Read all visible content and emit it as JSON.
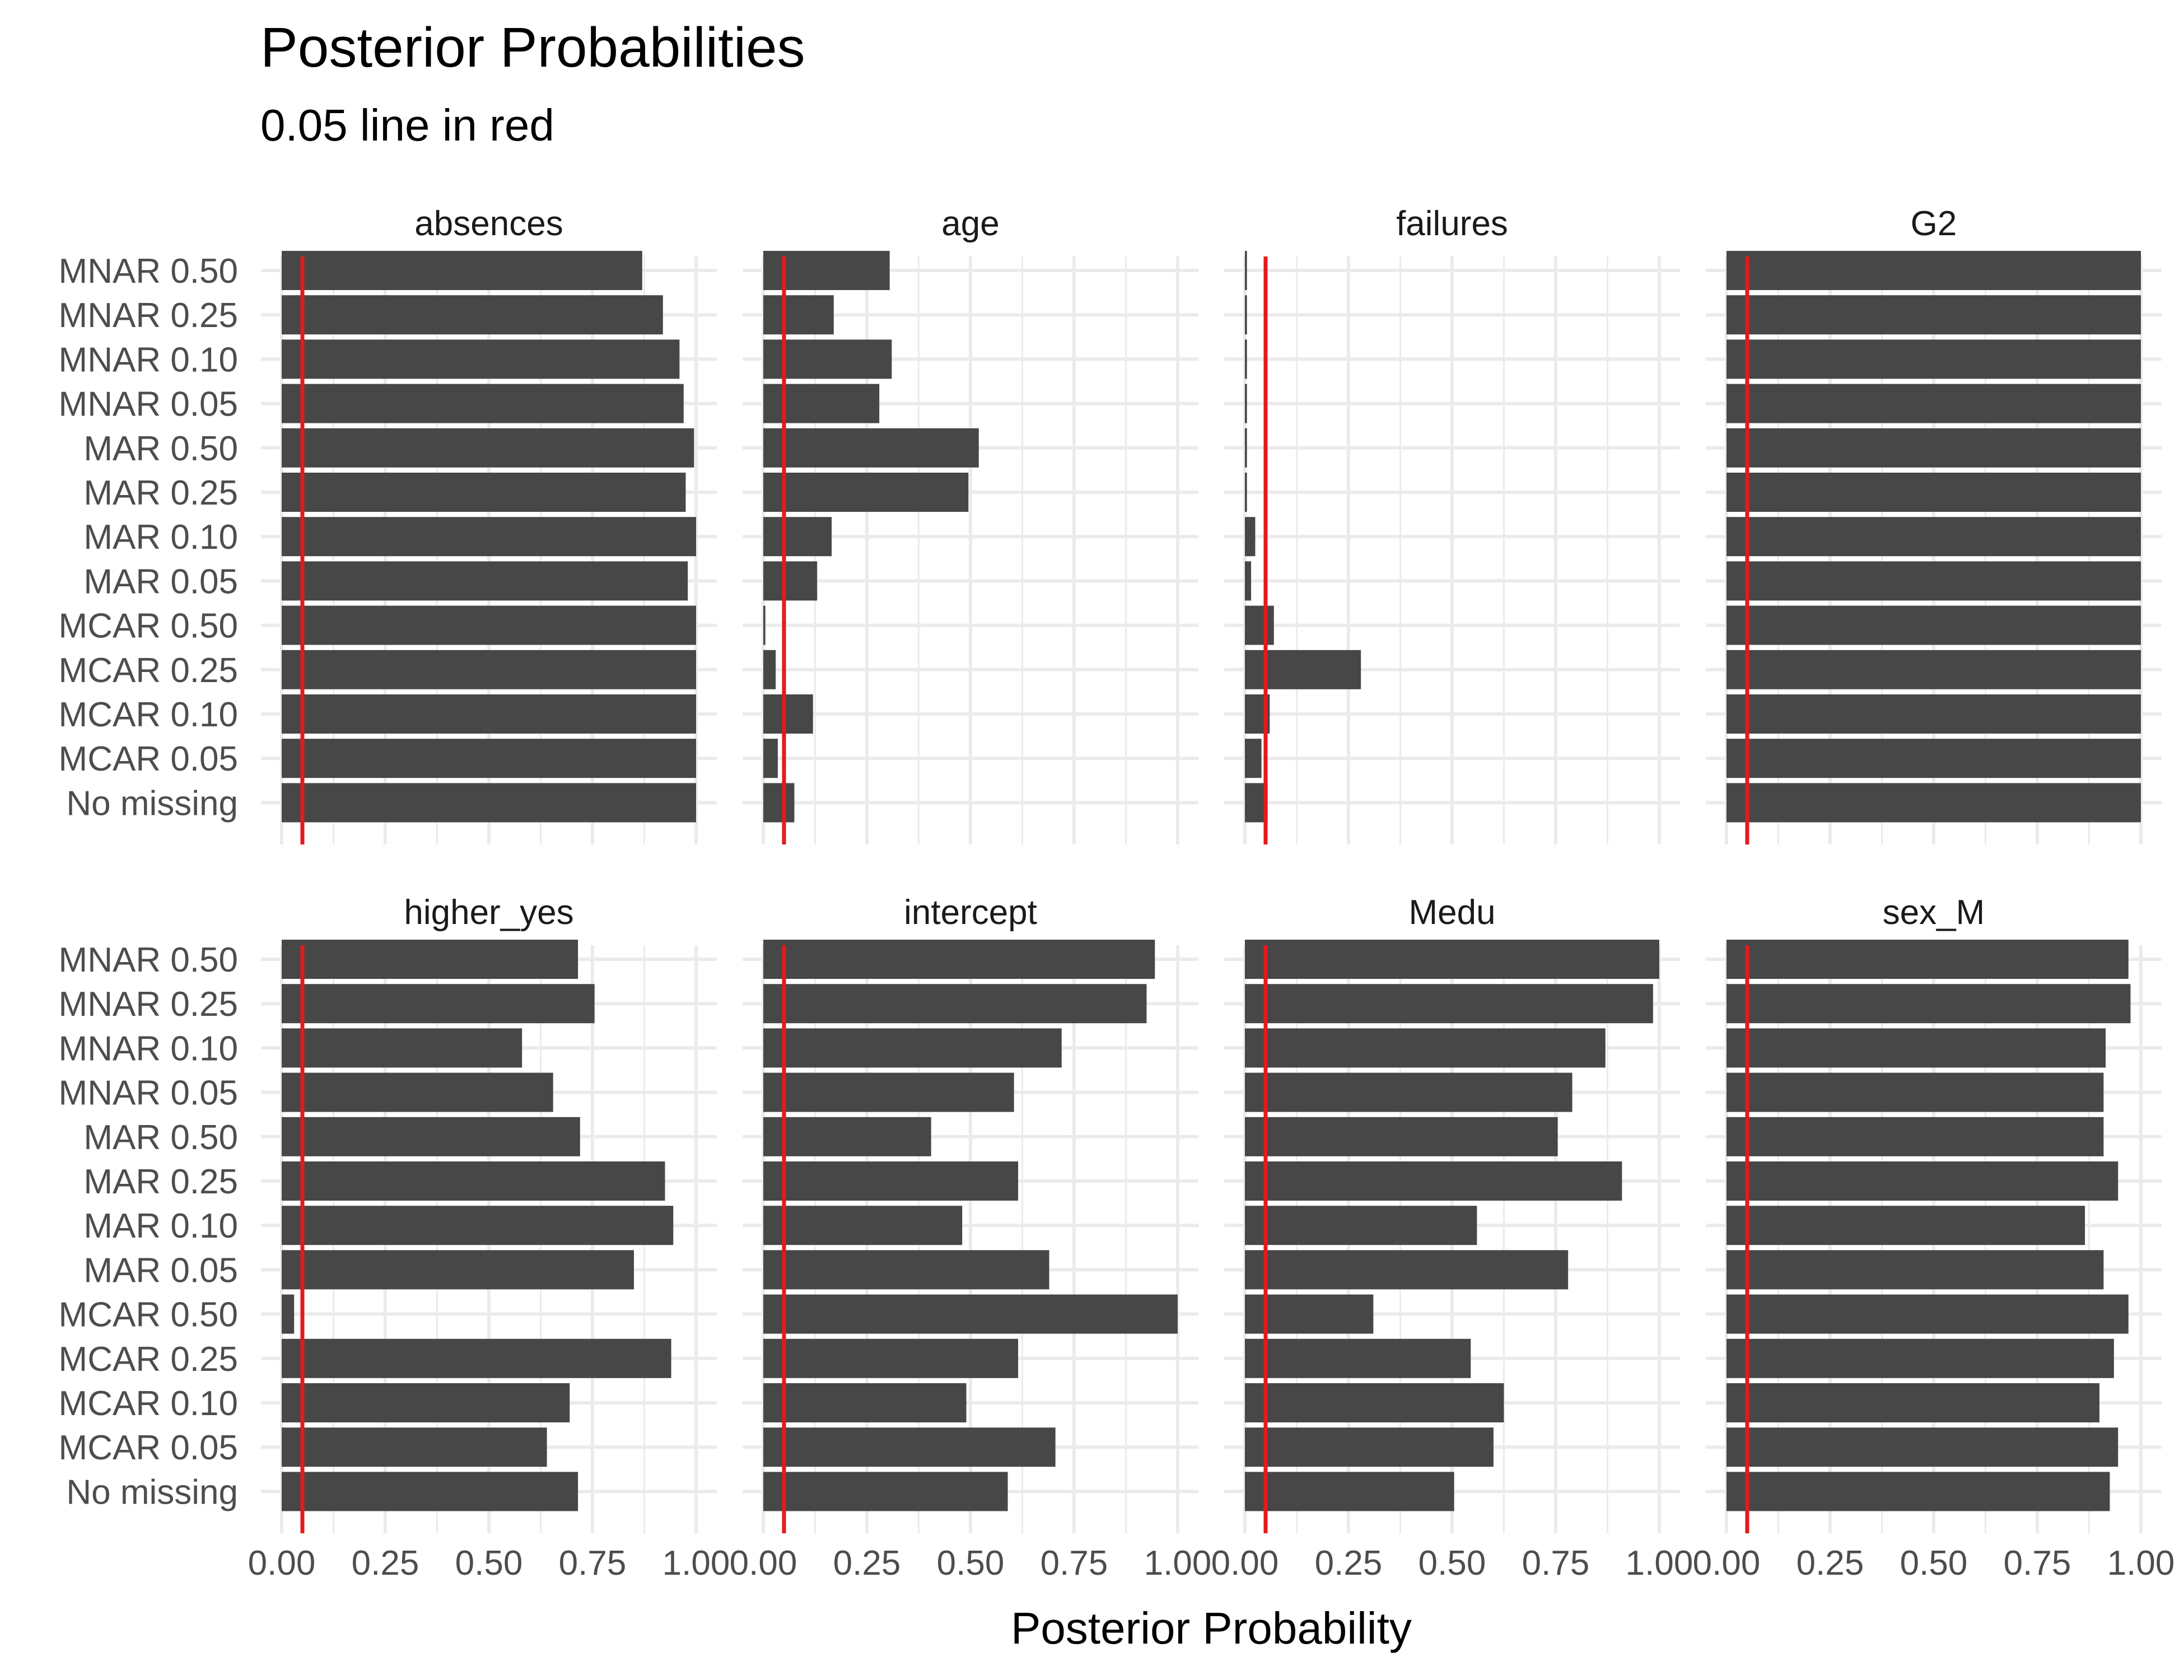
{
  "chart_data": {
    "type": "bar",
    "orientation": "horizontal",
    "title": "Posterior Probabilities",
    "subtitle": "0.05 line in red",
    "xlabel": "Posterior Probability",
    "ylabel": "",
    "xlim": [
      0,
      1
    ],
    "x_ticks": [
      "0.00",
      "0.25",
      "0.50",
      "0.75",
      "1.00"
    ],
    "reference_line": {
      "value": 0.05,
      "color": "#E41A1C"
    },
    "bar_color": "#474747",
    "grid": true,
    "categories": [
      "MNAR 0.50",
      "MNAR 0.25",
      "MNAR 0.10",
      "MNAR 0.05",
      "MAR 0.50",
      "MAR 0.25",
      "MAR 0.10",
      "MAR 0.05",
      "MCAR 0.50",
      "MCAR 0.25",
      "MCAR 0.10",
      "MCAR 0.05",
      "No missing"
    ],
    "panels": [
      {
        "name": "absences",
        "values": [
          0.87,
          0.92,
          0.96,
          0.97,
          0.995,
          0.975,
          1.0,
          0.98,
          1.0,
          1.0,
          1.0,
          1.0,
          1.0
        ]
      },
      {
        "name": "age",
        "values": [
          0.305,
          0.17,
          0.31,
          0.28,
          0.52,
          0.495,
          0.165,
          0.13,
          0.005,
          0.03,
          0.12,
          0.035,
          0.075
        ]
      },
      {
        "name": "failures",
        "values": [
          0.005,
          0.005,
          0.005,
          0.005,
          0.005,
          0.005,
          0.025,
          0.015,
          0.07,
          0.28,
          0.06,
          0.04,
          0.055
        ]
      },
      {
        "name": "G2",
        "values": [
          1.0,
          1.0,
          1.0,
          1.0,
          1.0,
          1.0,
          1.0,
          1.0,
          1.0,
          1.0,
          1.0,
          1.0,
          1.0
        ]
      },
      {
        "name": "higher_yes",
        "values": [
          0.715,
          0.755,
          0.58,
          0.655,
          0.72,
          0.925,
          0.945,
          0.85,
          0.03,
          0.94,
          0.695,
          0.64,
          0.715
        ]
      },
      {
        "name": "intercept",
        "values": [
          0.945,
          0.925,
          0.72,
          0.605,
          0.405,
          0.615,
          0.48,
          0.69,
          1.0,
          0.615,
          0.49,
          0.705,
          0.59
        ]
      },
      {
        "name": "Medu",
        "values": [
          1.0,
          0.985,
          0.87,
          0.79,
          0.755,
          0.91,
          0.56,
          0.78,
          0.31,
          0.545,
          0.625,
          0.6,
          0.505
        ]
      },
      {
        "name": "sex_M",
        "values": [
          0.97,
          0.975,
          0.915,
          0.91,
          0.91,
          0.945,
          0.865,
          0.91,
          0.97,
          0.935,
          0.9,
          0.945,
          0.925
        ]
      }
    ]
  }
}
